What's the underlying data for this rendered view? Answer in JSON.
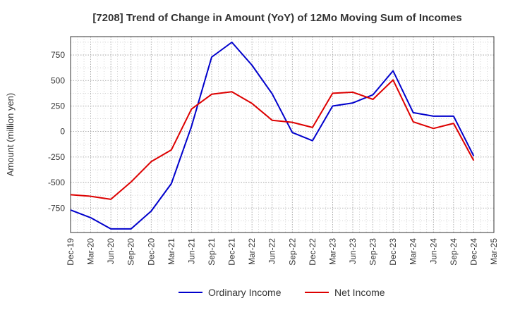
{
  "chart_data": {
    "type": "line",
    "title": "[7208]  Trend of Change in Amount (YoY) of 12Mo Moving Sum of Incomes",
    "xlabel": "",
    "ylabel": "Amount (million yen)",
    "categories": [
      "Dec-19",
      "Mar-20",
      "Jun-20",
      "Sep-20",
      "Dec-20",
      "Mar-21",
      "Jun-21",
      "Sep-21",
      "Dec-21",
      "Mar-22",
      "Jun-22",
      "Sep-22",
      "Dec-22",
      "Mar-23",
      "Jun-23",
      "Sep-23",
      "Dec-23",
      "Mar-24",
      "Jun-24",
      "Sep-24",
      "Dec-24",
      "Mar-25"
    ],
    "yticks": [
      -750,
      -500,
      -250,
      0,
      250,
      500,
      750
    ],
    "ylim": [
      -990,
      930
    ],
    "grid": true,
    "legend_position": "bottom",
    "series": [
      {
        "name": "Ordinary Income",
        "color": "#0000cc",
        "values": [
          -770,
          -845,
          -955,
          -955,
          -780,
          -510,
          50,
          730,
          875,
          650,
          370,
          -10,
          -90,
          250,
          280,
          360,
          595,
          185,
          150,
          150,
          -240,
          null
        ]
      },
      {
        "name": "Net Income",
        "color": "#dd0000",
        "values": [
          -620,
          -635,
          -665,
          -495,
          -295,
          -180,
          220,
          365,
          390,
          275,
          110,
          90,
          40,
          375,
          385,
          315,
          505,
          95,
          30,
          80,
          -285,
          null
        ]
      }
    ]
  }
}
